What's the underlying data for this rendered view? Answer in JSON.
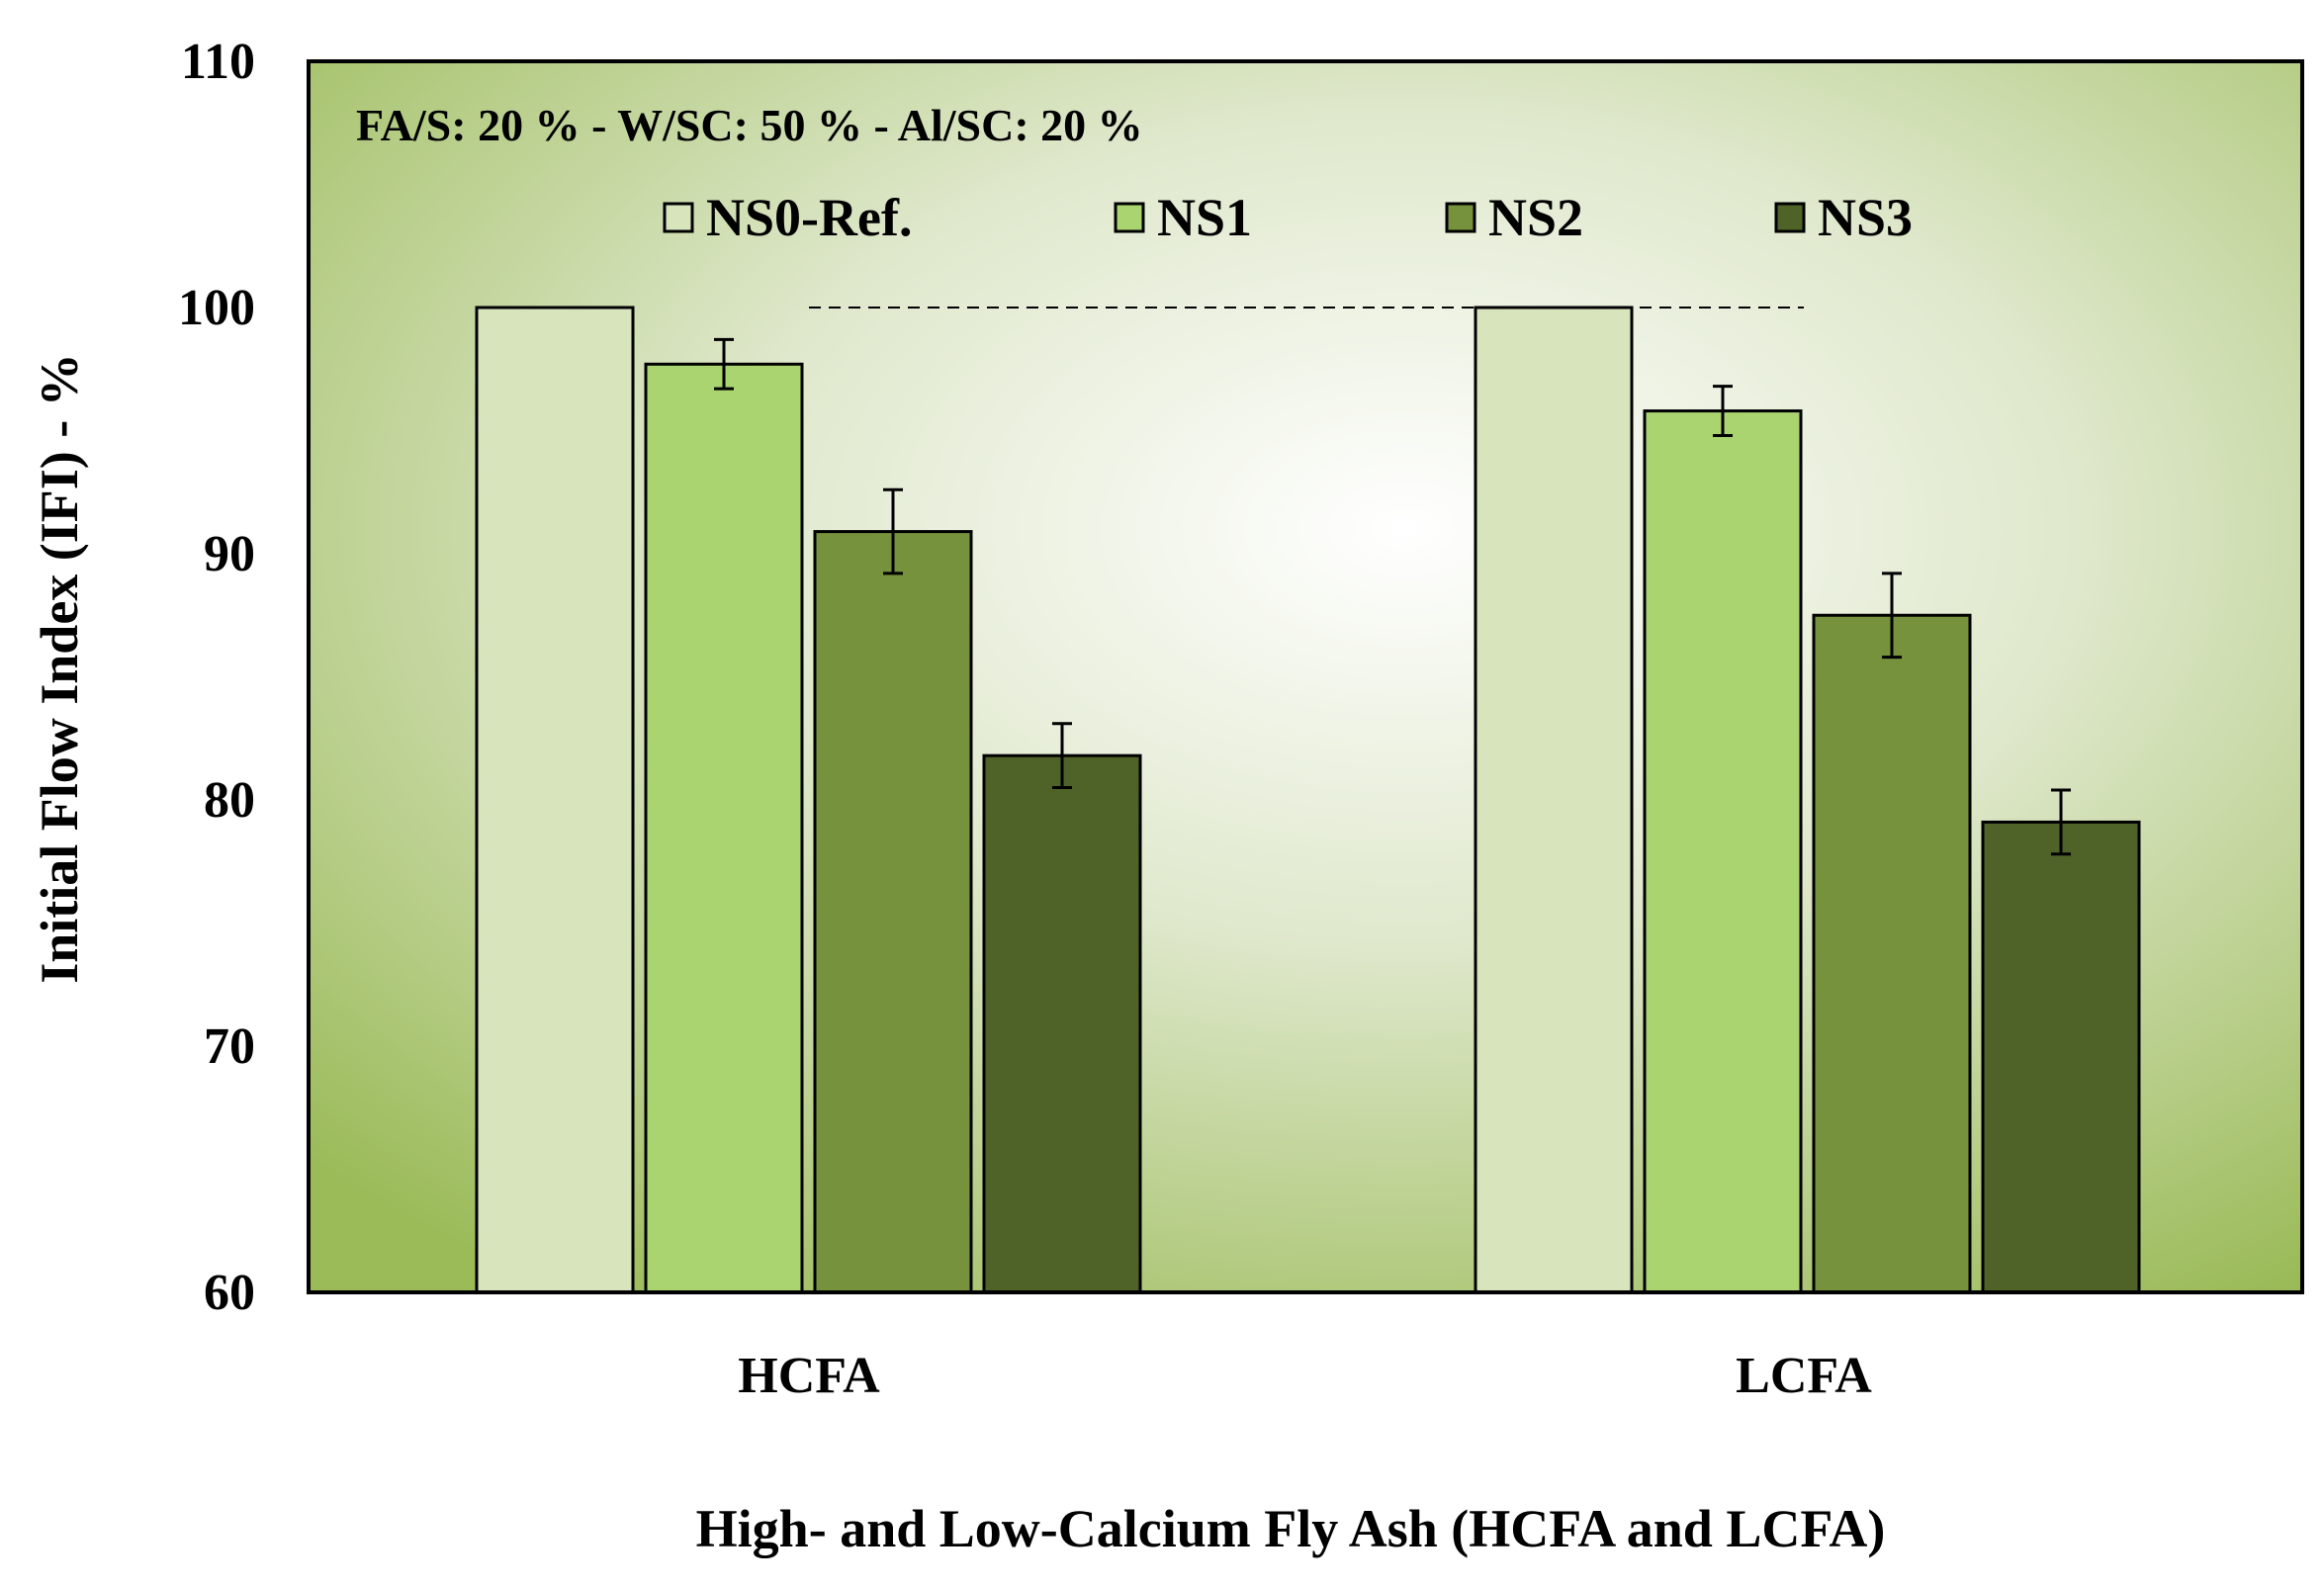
{
  "chart_data": {
    "type": "bar",
    "title": "",
    "annotation": "FA/S: 20 % - W/SC: 50 % - Al/SC: 20 %",
    "xlabel": "High- and Low-Calcium Fly Ash (HCFA and LCFA)",
    "ylabel": "Initial Flow Index (IFI) - %",
    "categories": [
      "HCFA",
      "LCFA"
    ],
    "ylim": [
      60,
      110
    ],
    "yticks": [
      60,
      70,
      80,
      90,
      100,
      110
    ],
    "grid": false,
    "legend_position": "top",
    "reference_line": 100,
    "series": [
      {
        "name": "NS0-Ref.",
        "color": "#d8e4bc",
        "values": [
          100,
          100
        ],
        "errors": [
          0,
          0
        ]
      },
      {
        "name": "NS1",
        "color": "#a9d46f",
        "values": [
          97.7,
          95.8
        ],
        "errors": [
          1.0,
          1.0
        ]
      },
      {
        "name": "NS2",
        "color": "#76923c",
        "values": [
          90.9,
          87.5
        ],
        "errors": [
          1.7,
          1.7
        ]
      },
      {
        "name": "NS3",
        "color": "#4f6228",
        "values": [
          81.8,
          79.1
        ],
        "errors": [
          1.3,
          1.3
        ]
      }
    ],
    "colors": {
      "plot_background_center": "#ffffff",
      "plot_background_edge": "#9bbb59",
      "axis": "#000000"
    }
  }
}
